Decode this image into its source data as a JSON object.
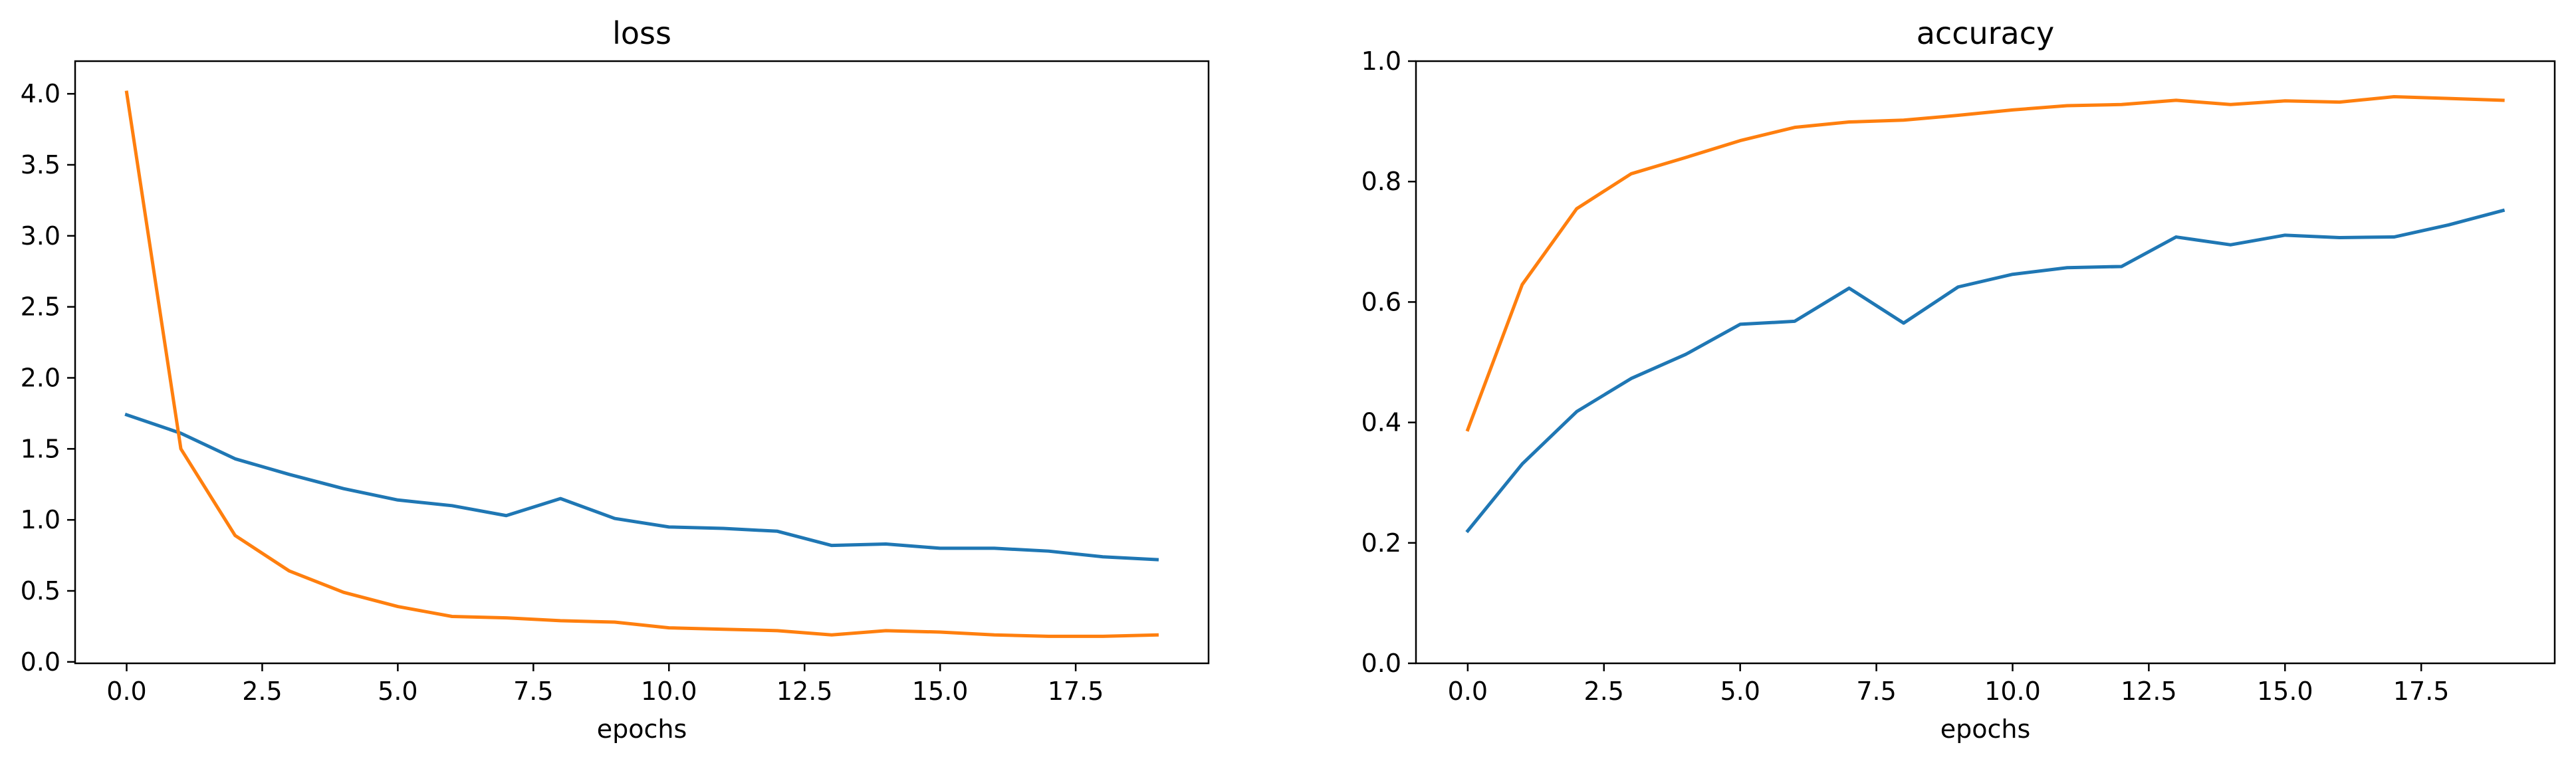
{
  "chart_data": [
    {
      "type": "line",
      "title": "loss",
      "xlabel": "epochs",
      "ylabel": "",
      "xlim": [
        -0.95,
        19.95
      ],
      "ylim": [
        -0.01,
        4.23
      ],
      "xticks": [
        0.0,
        2.5,
        5.0,
        7.5,
        10.0,
        12.5,
        15.0,
        17.5
      ],
      "xtick_labels": [
        "0.0",
        "2.5",
        "5.0",
        "7.5",
        "10.0",
        "12.5",
        "15.0",
        "17.5"
      ],
      "yticks": [
        0.0,
        0.5,
        1.0,
        1.5,
        2.0,
        2.5,
        3.0,
        3.5,
        4.0
      ],
      "ytick_labels": [
        "0.0",
        "0.5",
        "1.0",
        "1.5",
        "2.0",
        "2.5",
        "3.0",
        "3.5",
        "4.0"
      ],
      "grid": false,
      "x": [
        0,
        1,
        2,
        3,
        4,
        5,
        6,
        7,
        8,
        9,
        10,
        11,
        12,
        13,
        14,
        15,
        16,
        17,
        18,
        19
      ],
      "series": [
        {
          "color": "#1f77b4",
          "values": [
            1.74,
            1.61,
            1.43,
            1.32,
            1.22,
            1.14,
            1.1,
            1.03,
            1.15,
            1.01,
            0.95,
            0.94,
            0.92,
            0.82,
            0.83,
            0.8,
            0.8,
            0.78,
            0.74,
            0.72
          ]
        },
        {
          "color": "#ff7f0e",
          "values": [
            4.01,
            1.5,
            0.89,
            0.64,
            0.49,
            0.39,
            0.32,
            0.31,
            0.29,
            0.28,
            0.24,
            0.23,
            0.22,
            0.19,
            0.22,
            0.21,
            0.19,
            0.18,
            0.18,
            0.19
          ]
        }
      ]
    },
    {
      "type": "line",
      "title": "accuracy",
      "xlabel": "epochs",
      "ylabel": "",
      "xlim": [
        -0.95,
        19.95
      ],
      "ylim": [
        0.0,
        1.0
      ],
      "xticks": [
        0.0,
        2.5,
        5.0,
        7.5,
        10.0,
        12.5,
        15.0,
        17.5
      ],
      "xtick_labels": [
        "0.0",
        "2.5",
        "5.0",
        "7.5",
        "10.0",
        "12.5",
        "15.0",
        "17.5"
      ],
      "yticks": [
        0.0,
        0.2,
        0.4,
        0.6,
        0.8,
        1.0
      ],
      "ytick_labels": [
        "0.0",
        "0.2",
        "0.4",
        "0.6",
        "0.8",
        "1.0"
      ],
      "grid": false,
      "x": [
        0,
        1,
        2,
        3,
        4,
        5,
        6,
        7,
        8,
        9,
        10,
        11,
        12,
        13,
        14,
        15,
        16,
        17,
        18,
        19
      ],
      "series": [
        {
          "color": "#1f77b4",
          "values": [
            0.22,
            0.331,
            0.418,
            0.473,
            0.513,
            0.563,
            0.568,
            0.623,
            0.565,
            0.625,
            0.646,
            0.657,
            0.659,
            0.708,
            0.695,
            0.711,
            0.707,
            0.708,
            0.728,
            0.752
          ]
        },
        {
          "color": "#ff7f0e",
          "values": [
            0.388,
            0.629,
            0.755,
            0.813,
            0.84,
            0.868,
            0.89,
            0.899,
            0.902,
            0.91,
            0.919,
            0.926,
            0.928,
            0.935,
            0.928,
            0.934,
            0.932,
            0.941,
            0.938,
            0.935
          ]
        }
      ]
    }
  ]
}
